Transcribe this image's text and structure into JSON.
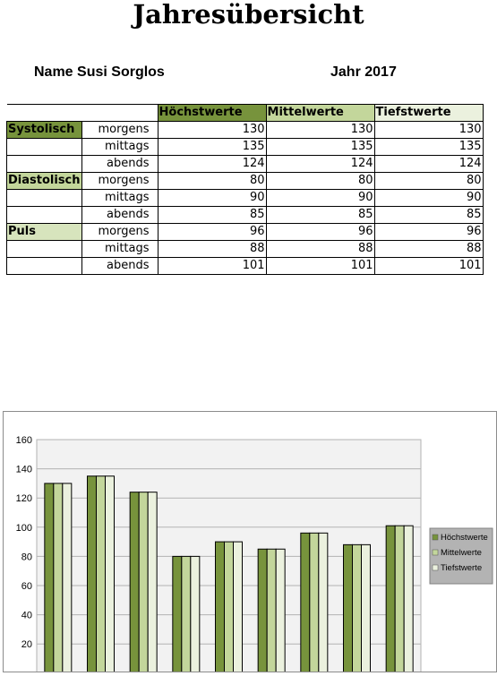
{
  "document": {
    "title": "Jahresübersicht",
    "name_label": "Name",
    "name_value": "Susi Sorglos",
    "year_label": "Jahr",
    "year_value": "2017"
  },
  "table": {
    "columns": [
      "Höchstwerte",
      "Mittelwerte",
      "Tiefstwerte"
    ],
    "column_colors": [
      "#77933c",
      "#c3d69b",
      "#ebf1de"
    ],
    "group_colors": [
      "#77933c",
      "#c3d69b",
      "#d7e4bd"
    ],
    "rows": [
      {
        "group": "Systolisch",
        "time": "morgens",
        "values": [
          "130",
          "130",
          "130"
        ]
      },
      {
        "group": "",
        "time": "mittags",
        "values": [
          "135",
          "135",
          "135"
        ]
      },
      {
        "group": "",
        "time": "abends",
        "values": [
          "124",
          "124",
          "124"
        ]
      },
      {
        "group": "Diastolisch",
        "time": "morgens",
        "values": [
          "80",
          "80",
          "80"
        ]
      },
      {
        "group": "",
        "time": "mittags",
        "values": [
          "90",
          "90",
          "90"
        ]
      },
      {
        "group": "",
        "time": "abends",
        "values": [
          "85",
          "85",
          "85"
        ]
      },
      {
        "group": "Puls",
        "time": "morgens",
        "values": [
          "96",
          "96",
          "96"
        ]
      },
      {
        "group": "",
        "time": "mittags",
        "values": [
          "88",
          "88",
          "88"
        ]
      },
      {
        "group": "",
        "time": "abends",
        "values": [
          "101",
          "101",
          "101"
        ]
      }
    ]
  },
  "chart_data": {
    "type": "bar",
    "categories": [
      "",
      "",
      "",
      "",
      "",
      "",
      "",
      "",
      ""
    ],
    "series": [
      {
        "name": "Höchstwerte",
        "values": [
          130,
          135,
          124,
          80,
          90,
          85,
          96,
          88,
          101
        ],
        "color": "#77933c"
      },
      {
        "name": "Mittelwerte",
        "values": [
          130,
          135,
          124,
          80,
          90,
          85,
          96,
          88,
          101
        ],
        "color": "#c3d69b"
      },
      {
        "name": "Tiefstwerte",
        "values": [
          130,
          135,
          124,
          80,
          90,
          85,
          96,
          88,
          101
        ],
        "color": "#ebf1de"
      }
    ],
    "ylim": [
      0,
      160
    ],
    "yticks": [
      "20",
      "40",
      "60",
      "80",
      "100",
      "120",
      "140",
      "160"
    ],
    "grid": true,
    "legend": "right"
  }
}
